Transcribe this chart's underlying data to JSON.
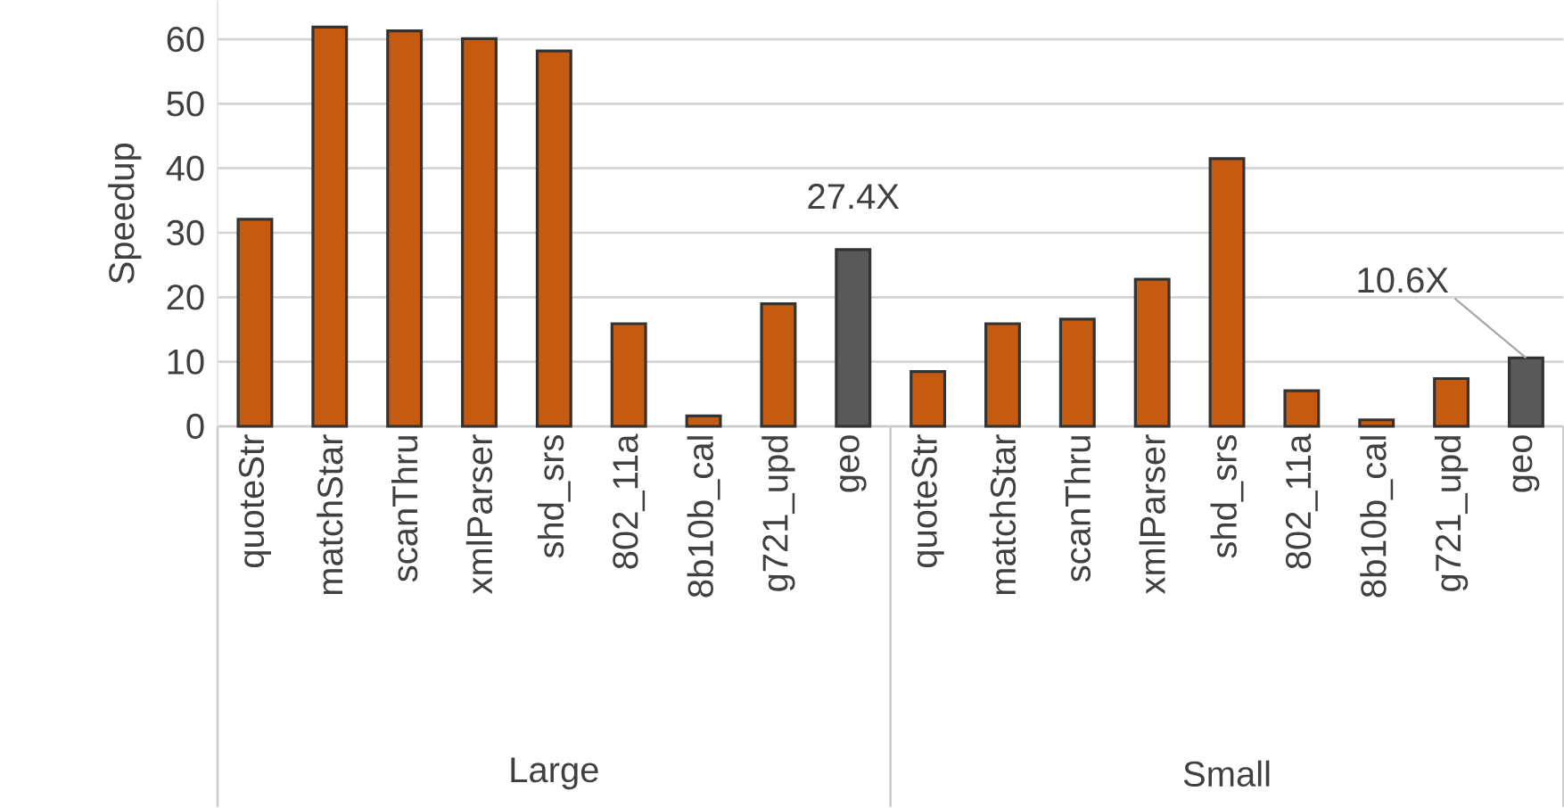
{
  "chart_data": {
    "type": "bar",
    "ylabel": "Speedup",
    "categories": [
      "quoteStr",
      "matchStar",
      "scanThru",
      "xmlParser",
      "shd_srs",
      "802_11a",
      "8b10b_cal",
      "g721_upd",
      "geo",
      "quoteStr",
      "matchStar",
      "scanThru",
      "xmlParser",
      "shd_srs",
      "802_11a",
      "8b10b_cal",
      "g721_upd",
      "geo"
    ],
    "values": [
      32.1,
      61.9,
      61.3,
      60.1,
      58.2,
      15.9,
      1.6,
      19.0,
      27.4,
      8.5,
      15.9,
      16.6,
      22.8,
      41.5,
      5.5,
      1.0,
      7.4,
      10.6
    ],
    "colors": [
      "#c55a11",
      "#c55a11",
      "#c55a11",
      "#c55a11",
      "#c55a11",
      "#c55a11",
      "#c55a11",
      "#c55a11",
      "#595959",
      "#c55a11",
      "#c55a11",
      "#c55a11",
      "#c55a11",
      "#c55a11",
      "#c55a11",
      "#c55a11",
      "#c55a11",
      "#595959"
    ],
    "value_labels": [
      null,
      null,
      null,
      null,
      null,
      null,
      null,
      null,
      "27.4X",
      null,
      null,
      null,
      null,
      null,
      null,
      null,
      null,
      "10.6X"
    ],
    "annotations": [
      "Large",
      "Small"
    ],
    "ylim": [
      0,
      66
    ],
    "yticks": [
      0,
      10,
      20,
      30,
      40,
      50,
      60
    ],
    "grid": "y"
  }
}
